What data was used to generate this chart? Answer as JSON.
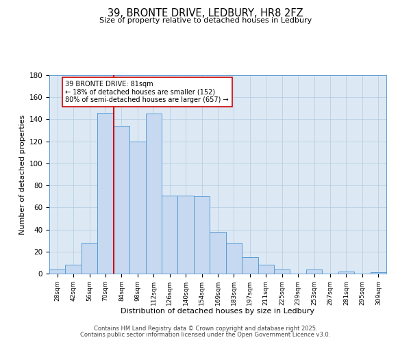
{
  "title": "39, BRONTE DRIVE, LEDBURY, HR8 2FZ",
  "subtitle": "Size of property relative to detached houses in Ledbury",
  "xlabel": "Distribution of detached houses by size in Ledbury",
  "ylabel": "Number of detached properties",
  "bar_labels": [
    "28sqm",
    "42sqm",
    "56sqm",
    "70sqm",
    "84sqm",
    "98sqm",
    "112sqm",
    "126sqm",
    "140sqm",
    "154sqm",
    "169sqm",
    "183sqm",
    "197sqm",
    "211sqm",
    "225sqm",
    "239sqm",
    "253sqm",
    "267sqm",
    "281sqm",
    "295sqm",
    "309sqm"
  ],
  "bar_values": [
    4,
    8,
    28,
    146,
    134,
    120,
    145,
    71,
    71,
    70,
    38,
    28,
    15,
    8,
    4,
    0,
    4,
    0,
    2,
    0,
    1
  ],
  "bar_color": "#c6d9f0",
  "bar_edge_color": "#5b9bd5",
  "vline_x_index": 3.5,
  "vline_color": "#cc0000",
  "annotation_text": "39 BRONTE DRIVE: 81sqm\n← 18% of detached houses are smaller (152)\n80% of semi-detached houses are larger (657) →",
  "annotation_box_color": "#ffffff",
  "annotation_box_edge": "#cc0000",
  "ylim": [
    0,
    180
  ],
  "yticks": [
    0,
    20,
    40,
    60,
    80,
    100,
    120,
    140,
    160,
    180
  ],
  "footer1": "Contains HM Land Registry data © Crown copyright and database right 2025.",
  "footer2": "Contains public sector information licensed under the Open Government Licence v3.0.",
  "bg_color": "#ffffff",
  "plot_bg_color": "#dce9f5",
  "grid_color": "#b8cfe0"
}
